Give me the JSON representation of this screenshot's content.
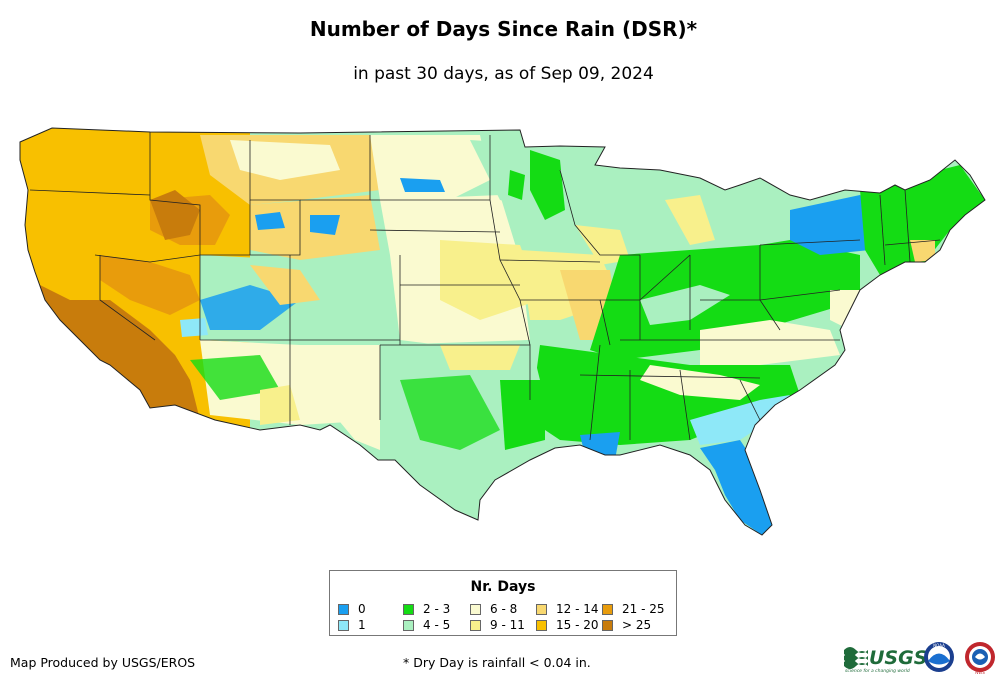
{
  "title": "Number of Days Since Rain (DSR)*",
  "subtitle": "in past 30 days, as of Sep 09, 2024",
  "legend": {
    "title": "Nr. Days",
    "items": [
      {
        "label": "0",
        "color": "#1a9ff0"
      },
      {
        "label": "1",
        "color": "#8ee8f8"
      },
      {
        "label": "2 - 3",
        "color": "#14dc14"
      },
      {
        "label": "4 - 5",
        "color": "#aaf0c0"
      },
      {
        "label": "6 - 8",
        "color": "#fafad0"
      },
      {
        "label": "9 - 11",
        "color": "#f8f08c"
      },
      {
        "label": "12 - 14",
        "color": "#f8d870"
      },
      {
        "label": "15 - 20",
        "color": "#f8c000"
      },
      {
        "label": "21 - 25",
        "color": "#e89c0c"
      },
      {
        "label": "> 25",
        "color": "#c87c0c"
      }
    ]
  },
  "credit": "Map Produced by USGS/EROS",
  "footnote": "* Dry Day is rainfall < 0.04 in.",
  "logos": {
    "usgs": "USGS",
    "usgs_tagline": "science for a changing world",
    "noaa": "NOAA",
    "nws": "NWS"
  },
  "map": {
    "description_regions": [
      {
        "name": "pacific-northwest",
        "class": "15 - 20"
      },
      {
        "name": "california-southwest",
        "class": "> 25"
      },
      {
        "name": "great-basin",
        "class": "15 - 20"
      },
      {
        "name": "northern-rockies",
        "class": "15 - 20"
      },
      {
        "name": "northern-plains",
        "class": "6 - 8"
      },
      {
        "name": "upper-midwest",
        "class": "4 - 5"
      },
      {
        "name": "central-plains",
        "class": "9 - 11"
      },
      {
        "name": "texas",
        "class": "4 - 5"
      },
      {
        "name": "southeast",
        "class": "2 - 3"
      },
      {
        "name": "florida",
        "class": "0"
      },
      {
        "name": "northeast",
        "class": "2 - 3"
      },
      {
        "name": "new-york",
        "class": "0"
      }
    ]
  }
}
